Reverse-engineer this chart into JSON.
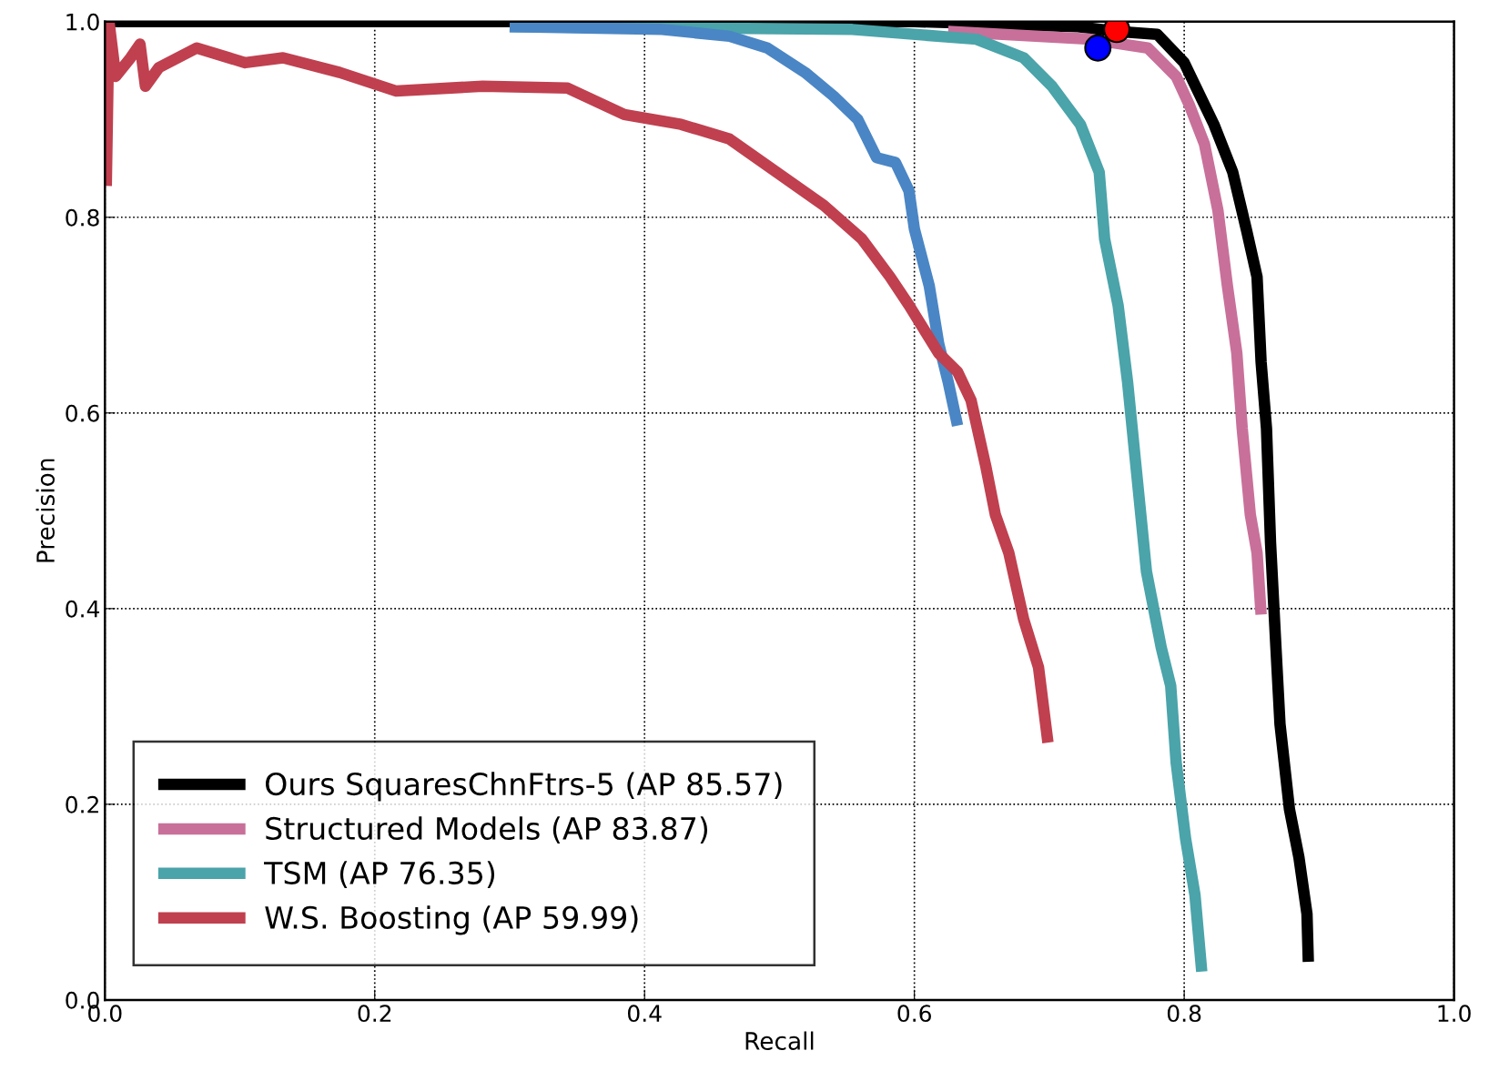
{
  "chart_data": {
    "type": "line",
    "xlabel": "Recall",
    "ylabel": "Precision",
    "xlim": [
      0.0,
      1.0
    ],
    "ylim": [
      0.0,
      1.0
    ],
    "xticks": [
      {
        "value": 0,
        "label": "0.0"
      },
      0.2,
      0.4,
      0.6,
      0.8,
      {
        "value": 1,
        "label": "1.0"
      }
    ],
    "yticks": [
      {
        "value": 0,
        "label": "0.0"
      },
      0.2,
      0.4,
      0.6,
      0.8,
      {
        "value": 1,
        "label": "1.0"
      }
    ],
    "grid": true,
    "legend": "bottom left",
    "line_style": "solid",
    "marker": "none",
    "series": [
      {
        "name": "Ours SquaresChnFtrs-5 (AP 85.57)",
        "color": "#000000",
        "x": [
          0.0,
          0.3,
          0.6,
          0.72,
          0.75,
          0.78,
          0.8,
          0.822,
          0.836,
          0.846,
          0.854,
          0.857,
          0.861,
          0.864,
          0.868,
          0.871,
          0.878,
          0.885,
          0.891,
          0.892
        ],
        "values": [
          1.0,
          1.0,
          1.0,
          0.995,
          0.99,
          0.987,
          0.958,
          0.895,
          0.846,
          0.788,
          0.739,
          0.652,
          0.584,
          0.467,
          0.36,
          0.282,
          0.195,
          0.146,
          0.088,
          0.039
        ]
      },
      {
        "name": "Structured Models (AP 83.87)",
        "color": "#c8709a",
        "x": [
          0.625,
          0.73,
          0.773,
          0.794,
          0.804,
          0.815,
          0.825,
          0.832,
          0.839,
          0.843,
          0.849,
          0.854,
          0.857
        ],
        "values": [
          0.99,
          0.982,
          0.973,
          0.944,
          0.914,
          0.875,
          0.807,
          0.73,
          0.661,
          0.584,
          0.496,
          0.457,
          0.394
        ]
      },
      {
        "name": "TSM (AP 76.35)",
        "color": "#4aa4aa",
        "x": [
          0.3,
          0.554,
          0.646,
          0.681,
          0.702,
          0.723,
          0.737,
          0.741,
          0.751,
          0.758,
          0.765,
          0.772,
          0.783,
          0.79,
          0.794,
          0.801,
          0.808,
          0.813
        ],
        "values": [
          0.995,
          0.992,
          0.982,
          0.963,
          0.934,
          0.895,
          0.846,
          0.778,
          0.71,
          0.632,
          0.535,
          0.438,
          0.36,
          0.321,
          0.243,
          0.165,
          0.107,
          0.029
        ]
      },
      {
        "color": "#4a86c5",
        "x": [
          0.3,
          0.413,
          0.463,
          0.491,
          0.519,
          0.54,
          0.558,
          0.572,
          0.586,
          0.596,
          0.6,
          0.611,
          0.618,
          0.625,
          0.632
        ],
        "values": [
          0.995,
          0.992,
          0.985,
          0.973,
          0.948,
          0.924,
          0.9,
          0.861,
          0.856,
          0.827,
          0.788,
          0.73,
          0.671,
          0.632,
          0.587
        ]
      },
      {
        "name": "W.S. Boosting (AP 59.99)",
        "color": "#c0404f",
        "x": [
          0.001,
          0.003,
          0.008,
          0.019,
          0.026,
          0.03,
          0.04,
          0.068,
          0.104,
          0.132,
          0.174,
          0.216,
          0.28,
          0.343,
          0.385,
          0.427,
          0.463,
          0.498,
          0.533,
          0.561,
          0.582,
          0.596,
          0.618,
          0.632,
          0.642,
          0.653,
          0.66,
          0.67,
          0.681,
          0.692,
          0.699
        ],
        "values": [
          0.832,
          1.0,
          0.944,
          0.963,
          0.977,
          0.934,
          0.953,
          0.973,
          0.958,
          0.963,
          0.948,
          0.929,
          0.934,
          0.932,
          0.905,
          0.895,
          0.88,
          0.846,
          0.812,
          0.778,
          0.739,
          0.71,
          0.661,
          0.642,
          0.613,
          0.545,
          0.496,
          0.457,
          0.389,
          0.34,
          0.263
        ]
      },
      {
        "type": "scatter",
        "marker": "circle",
        "color": "#0000ff",
        "x": [
          0.736
        ],
        "values": [
          0.973
        ]
      },
      {
        "type": "scatter",
        "marker": "circle",
        "color": "#ff0000",
        "x": [
          0.75
        ],
        "values": [
          0.992
        ]
      }
    ]
  }
}
